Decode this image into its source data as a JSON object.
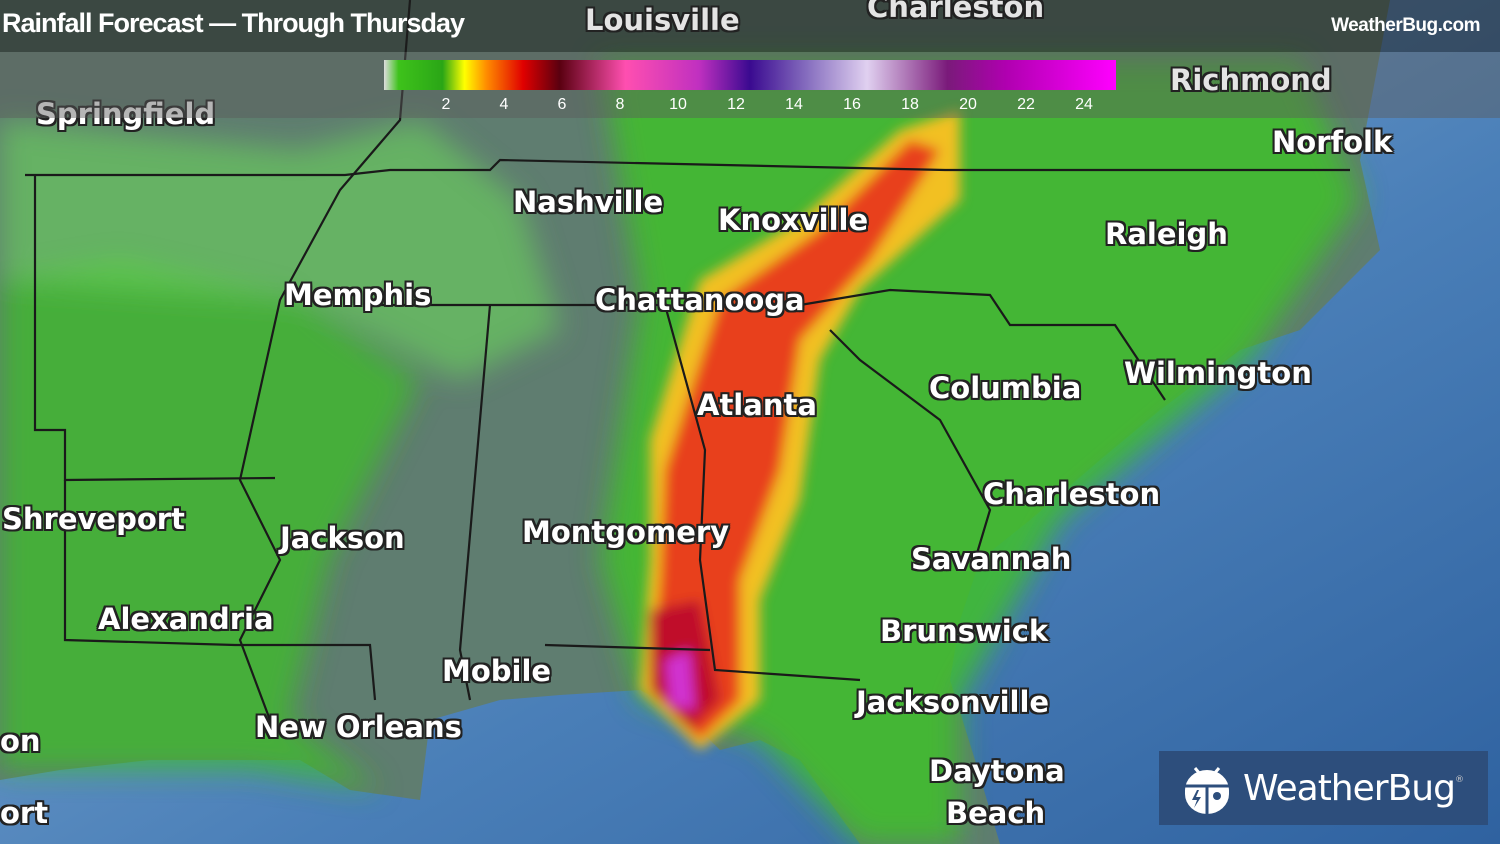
{
  "header": {
    "title": "Rainfall Forecast — Through Thursday",
    "site": "WeatherBug.com"
  },
  "legend": {
    "unit_ticks": [
      "2",
      "4",
      "6",
      "8",
      "10",
      "12",
      "14",
      "16",
      "18",
      "20",
      "22",
      "24"
    ],
    "colors": [
      "#dddddd",
      "#3ec21b",
      "#ffff00",
      "#ff8c00",
      "#e00000",
      "#5a0010",
      "#ff4fb0",
      "#3a0a90",
      "#e0d0f0",
      "#b000b0",
      "#ff00ff"
    ]
  },
  "cities": [
    {
      "name": "Louisville"
    },
    {
      "name": "Charleston"
    },
    {
      "name": "Richmond"
    },
    {
      "name": "Springfield"
    },
    {
      "name": "Norfolk"
    },
    {
      "name": "Nashville"
    },
    {
      "name": "Knoxville"
    },
    {
      "name": "Raleigh"
    },
    {
      "name": "Memphis"
    },
    {
      "name": "Chattanooga"
    },
    {
      "name": "Wilmington"
    },
    {
      "name": "Columbia"
    },
    {
      "name": "Atlanta"
    },
    {
      "name": "Charleston"
    },
    {
      "name": "Shreveport"
    },
    {
      "name": "Jackson"
    },
    {
      "name": "Montgomery"
    },
    {
      "name": "Savannah"
    },
    {
      "name": "Alexandria"
    },
    {
      "name": "Brunswick"
    },
    {
      "name": "Mobile"
    },
    {
      "name": "Jacksonville"
    },
    {
      "name": "New Orleans"
    },
    {
      "name": "on"
    },
    {
      "name": "Daytona"
    },
    {
      "name": "Beach"
    },
    {
      "name": "ort"
    }
  ],
  "logo": {
    "text": "WeatherBug",
    "mark": "®"
  },
  "colors": {
    "ocean": "#3d6fa8",
    "land": "#5d7a6e",
    "heavy_rain": "#e02a10",
    "light_rain": "#3ec21b"
  }
}
